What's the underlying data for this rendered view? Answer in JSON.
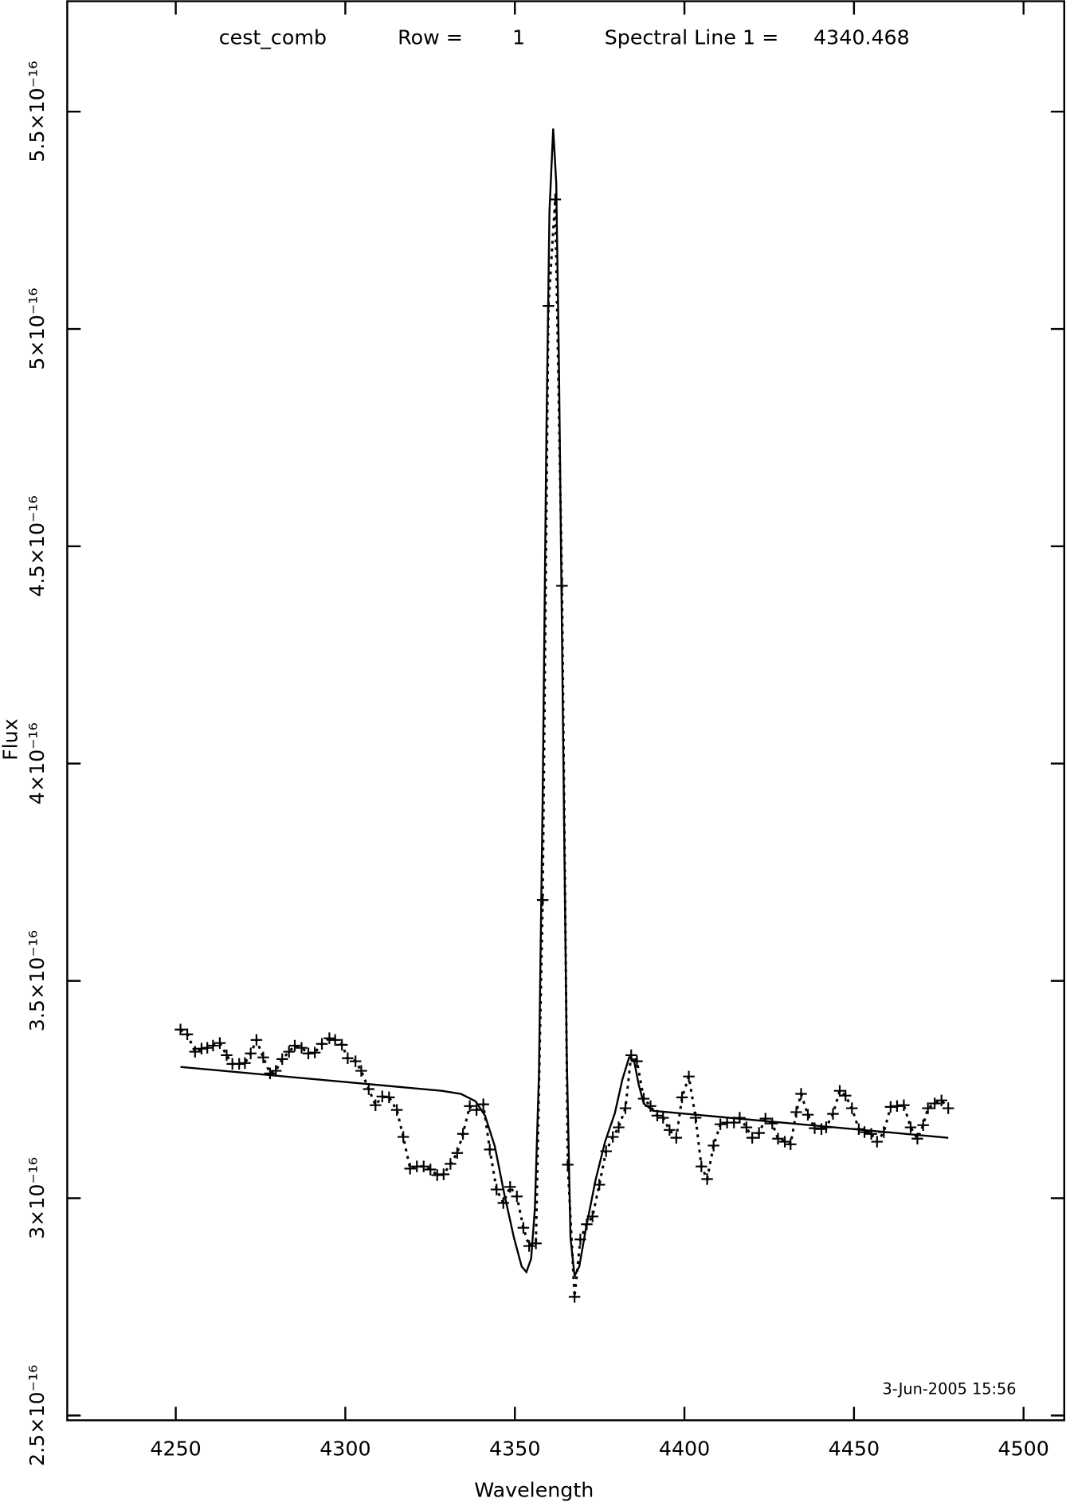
{
  "chart_data": {
    "type": "line",
    "title_parts": [
      "cest_comb",
      "Row =",
      "1",
      "Spectral Line 1 =",
      "4340.468"
    ],
    "xlabel": "Wavelength",
    "ylabel": "Flux",
    "annotation": "3-Jun-2005 15:56",
    "xlim": [
      4218,
      4512
    ],
    "ylim": [
      2.489e-16,
      5.754e-16
    ],
    "xticks": [
      4250,
      4300,
      4350,
      4400,
      4450,
      4500
    ],
    "yticks": [
      {
        "value": 2.5e-16,
        "label": "2.5×10⁻¹⁶"
      },
      {
        "value": 3e-16,
        "label": "3×10⁻¹⁶"
      },
      {
        "value": 3.5e-16,
        "label": "3.5×10⁻¹⁶"
      },
      {
        "value": 4e-16,
        "label": "4×10⁻¹⁶"
      },
      {
        "value": 4.5e-16,
        "label": "4.5×10⁻¹⁶"
      },
      {
        "value": 5e-16,
        "label": "5×10⁻¹⁶"
      },
      {
        "value": 5.5e-16,
        "label": "5.5×10⁻¹⁶"
      }
    ],
    "series": [
      {
        "color": "#000000",
        "marker": "+",
        "linestyle": "dotted",
        "x": [
          4251.4,
          4253.4,
          4255.7,
          4257.6,
          4259.3,
          4261.0,
          4263.0,
          4265.0,
          4266.7,
          4268.7,
          4270.4,
          4272.1,
          4273.8,
          4275.8,
          4277.8,
          4279.5,
          4281.4,
          4283.4,
          4285.1,
          4287.1,
          4289.1,
          4291.0,
          4293.1,
          4295.3,
          4297.0,
          4299.0,
          4300.7,
          4303.0,
          4304.7,
          4306.9,
          4308.9,
          4310.9,
          4312.9,
          4315.2,
          4317.1,
          4319.1,
          4321.1,
          4323.1,
          4325.1,
          4327.1,
          4329.0,
          4331.0,
          4333.0,
          4334.7,
          4336.7,
          4338.7,
          4340.7,
          4342.6,
          4344.6,
          4346.6,
          4348.6,
          4350.6,
          4352.5,
          4354.2,
          4356.2,
          4358.2,
          4359.9,
          4361.9,
          4363.9,
          4365.6,
          4367.6,
          4369.3,
          4371.2,
          4372.9,
          4374.9,
          4376.9,
          4378.9,
          4380.6,
          4382.6,
          4384.3,
          4386.0,
          4388.0,
          4390.0,
          4392.0,
          4393.7,
          4395.6,
          4397.6,
          4399.3,
          4401.3,
          4403.3,
          4405.0,
          4406.7,
          4408.6,
          4410.6,
          4412.6,
          4414.6,
          4416.3,
          4418.3,
          4420.0,
          4422.0,
          4423.9,
          4425.9,
          4427.6,
          4429.6,
          4431.3,
          4433.0,
          4434.4,
          4436.4,
          4438.4,
          4440.4,
          4441.8,
          4443.8,
          4445.8,
          4447.5,
          4449.4,
          4451.4,
          4453.1,
          4455.1,
          4456.8,
          4458.8,
          4460.8,
          4462.7,
          4464.7,
          4466.7,
          4468.7,
          4470.4,
          4471.8,
          4473.8,
          4475.8,
          4477.8
        ],
        "values": [
          3.388e-16,
          3.377e-16,
          3.337e-16,
          3.344e-16,
          3.346e-16,
          3.351e-16,
          3.357e-16,
          3.329e-16,
          3.309e-16,
          3.309e-16,
          3.311e-16,
          3.333e-16,
          3.364e-16,
          3.324e-16,
          3.287e-16,
          3.293e-16,
          3.32e-16,
          3.337e-16,
          3.351e-16,
          3.346e-16,
          3.333e-16,
          3.335e-16,
          3.355e-16,
          3.368e-16,
          3.364e-16,
          3.353e-16,
          3.322e-16,
          3.315e-16,
          3.293e-16,
          3.251e-16,
          3.214e-16,
          3.234e-16,
          3.232e-16,
          3.203e-16,
          3.141e-16,
          3.068e-16,
          3.073e-16,
          3.073e-16,
          3.066e-16,
          3.053e-16,
          3.055e-16,
          3.079e-16,
          3.104e-16,
          3.148e-16,
          3.212e-16,
          3.203e-16,
          3.216e-16,
          3.112e-16,
          3.02e-16,
          2.989e-16,
          3.026e-16,
          3.004e-16,
          2.932e-16,
          2.89e-16,
          2.896e-16,
          3.686e-16,
          5.053e-16,
          5.298e-16,
          4.409e-16,
          3.077e-16,
          2.773e-16,
          2.905e-16,
          2.94e-16,
          2.958e-16,
          3.031e-16,
          3.108e-16,
          3.141e-16,
          3.163e-16,
          3.207e-16,
          3.329e-16,
          3.315e-16,
          3.229e-16,
          3.212e-16,
          3.19e-16,
          3.185e-16,
          3.157e-16,
          3.139e-16,
          3.232e-16,
          3.28e-16,
          3.185e-16,
          3.073e-16,
          3.044e-16,
          3.121e-16,
          3.17e-16,
          3.174e-16,
          3.174e-16,
          3.185e-16,
          3.163e-16,
          3.139e-16,
          3.15e-16,
          3.183e-16,
          3.172e-16,
          3.137e-16,
          3.13e-16,
          3.124e-16,
          3.198e-16,
          3.24e-16,
          3.192e-16,
          3.161e-16,
          3.159e-16,
          3.163e-16,
          3.194e-16,
          3.247e-16,
          3.236e-16,
          3.207e-16,
          3.159e-16,
          3.152e-16,
          3.148e-16,
          3.13e-16,
          3.152e-16,
          3.21e-16,
          3.212e-16,
          3.214e-16,
          3.163e-16,
          3.137e-16,
          3.168e-16,
          3.207e-16,
          3.218e-16,
          3.225e-16,
          3.207e-16
        ]
      },
      {
        "color": "#000000",
        "linestyle": "solid",
        "x": [
          4251.4,
          4328.5,
          4334.1,
          4338.4,
          4341.2,
          4344.1,
          4346.9,
          4349.7,
          4352.0,
          4353.4,
          4354.8,
          4355.9,
          4357.1,
          4358.2,
          4359.3,
          4360.2,
          4361.3,
          4362.2,
          4363.0,
          4364.2,
          4365.3,
          4366.4,
          4367.6,
          4369.0,
          4371.0,
          4373.8,
          4376.6,
          4379.5,
          4381.7,
          4383.7,
          4385.1,
          4386.5,
          4388.0,
          4390.8,
          4477.8
        ],
        "values": [
          3.302e-16,
          3.247e-16,
          3.24e-16,
          3.223e-16,
          3.19e-16,
          3.119e-16,
          3.009e-16,
          2.91e-16,
          2.843e-16,
          2.83e-16,
          2.861e-16,
          2.976e-16,
          3.285e-16,
          3.924e-16,
          4.762e-16,
          5.27e-16,
          5.461e-16,
          5.336e-16,
          4.917e-16,
          4.079e-16,
          3.329e-16,
          2.91e-16,
          2.821e-16,
          2.843e-16,
          2.932e-16,
          3.042e-16,
          3.13e-16,
          3.196e-16,
          3.273e-16,
          3.324e-16,
          3.318e-16,
          3.262e-16,
          3.218e-16,
          3.201e-16,
          3.139e-16
        ]
      }
    ]
  }
}
